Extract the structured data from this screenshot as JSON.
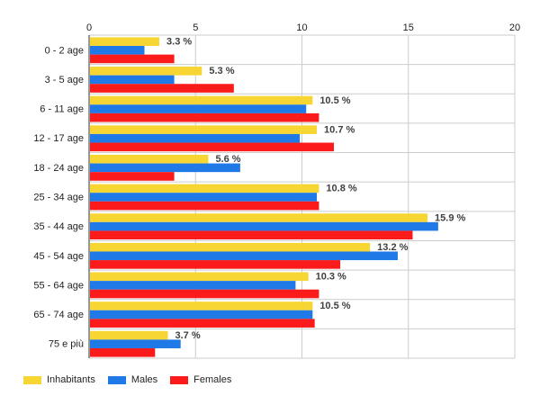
{
  "chart_data": {
    "type": "bar",
    "orientation": "horizontal",
    "categories": [
      "0 - 2 age",
      "3 - 5 age",
      "6 - 11 age",
      "12 - 17 age",
      "18 - 24 age",
      "25 - 34 age",
      "35 - 44 age",
      "45 - 54 age",
      "55 - 64 age",
      "65 - 74 age",
      "75 e più"
    ],
    "series": [
      {
        "name": "Inhabitants",
        "color": "#f7d633",
        "values": [
          3.3,
          5.3,
          10.5,
          10.7,
          5.6,
          10.8,
          15.9,
          13.2,
          10.3,
          10.5,
          3.7
        ]
      },
      {
        "name": "Males",
        "color": "#1f7ae8",
        "values": [
          2.6,
          4.0,
          10.2,
          9.9,
          7.1,
          10.7,
          16.4,
          14.5,
          9.7,
          10.5,
          4.3
        ]
      },
      {
        "name": "Females",
        "color": "#fb1b1b",
        "values": [
          4.0,
          6.8,
          10.8,
          11.5,
          4.0,
          10.8,
          15.2,
          11.8,
          10.8,
          10.6,
          3.1
        ]
      }
    ],
    "data_labels": [
      "3.3 %",
      "5.3 %",
      "10.5 %",
      "10.7 %",
      "5.6 %",
      "10.8 %",
      "15.9 %",
      "13.2 %",
      "10.3 %",
      "10.5 %",
      "3.7 %"
    ],
    "xlim": [
      0,
      20
    ],
    "x_ticks": [
      0,
      5,
      10,
      15,
      20
    ],
    "grid": true,
    "legend_position": "bottom-left",
    "title": "",
    "xlabel": "",
    "ylabel": ""
  }
}
